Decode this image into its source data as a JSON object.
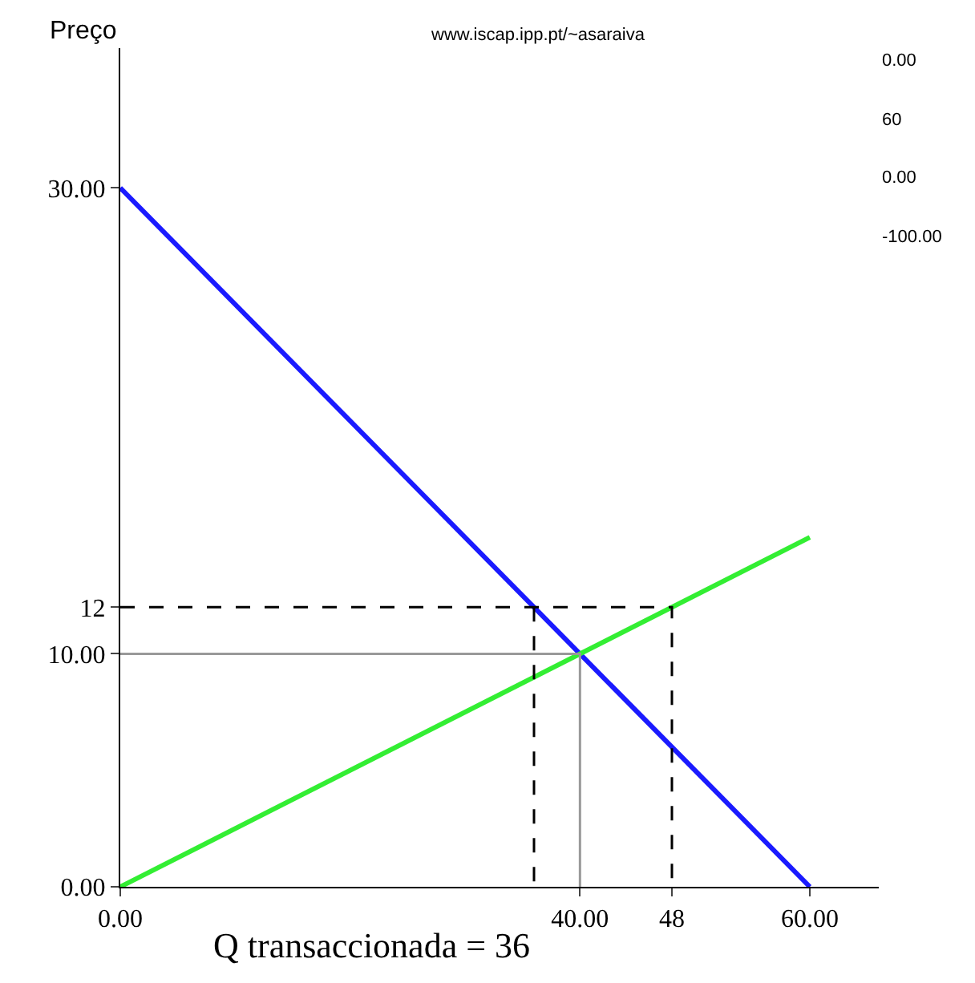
{
  "chart_data": {
    "type": "line",
    "ylabel": "Preço",
    "annotations": [
      "www.iscap.ipp.pt/~asaraiva",
      "0.00",
      "60",
      "0.00",
      "-100.00",
      {
        "text": "Q transaccionada = 36",
        "x": 36,
        "y": 0
      }
    ],
    "series": [
      {
        "x": [
          0,
          60
        ],
        "values": [
          30,
          0
        ],
        "color": "#1a1aff"
      },
      {
        "x": [
          0,
          60
        ],
        "values": [
          0,
          15
        ],
        "color": "#33ee33"
      },
      {
        "type": "line",
        "x": [
          0,
          40,
          40
        ],
        "values": [
          10,
          10,
          0
        ],
        "color": "#999999"
      },
      {
        "type": "line",
        "x": [
          0,
          48,
          48
        ],
        "values": [
          12,
          12,
          0
        ],
        "color": "#000000",
        "line_style": "dashed"
      },
      {
        "type": "line",
        "x": [
          36,
          36
        ],
        "values": [
          12,
          0
        ],
        "color": "#000000",
        "line_style": "dashed"
      }
    ],
    "xlim": [
      0,
      66
    ],
    "ylim": [
      0,
      36
    ],
    "xticks": [
      {
        "value": 0,
        "label": "0.00"
      },
      {
        "value": 40,
        "label": "40.00"
      },
      {
        "value": 48,
        "label": "48"
      },
      {
        "value": 60,
        "label": "60.00"
      }
    ],
    "yticks": [
      {
        "value": 0,
        "label": "0.00"
      },
      {
        "value": 10,
        "label": "10.00"
      },
      {
        "value": 12,
        "label": "12"
      },
      {
        "value": 30,
        "label": "30.00"
      }
    ],
    "marker": "none",
    "line_style": "solid"
  }
}
